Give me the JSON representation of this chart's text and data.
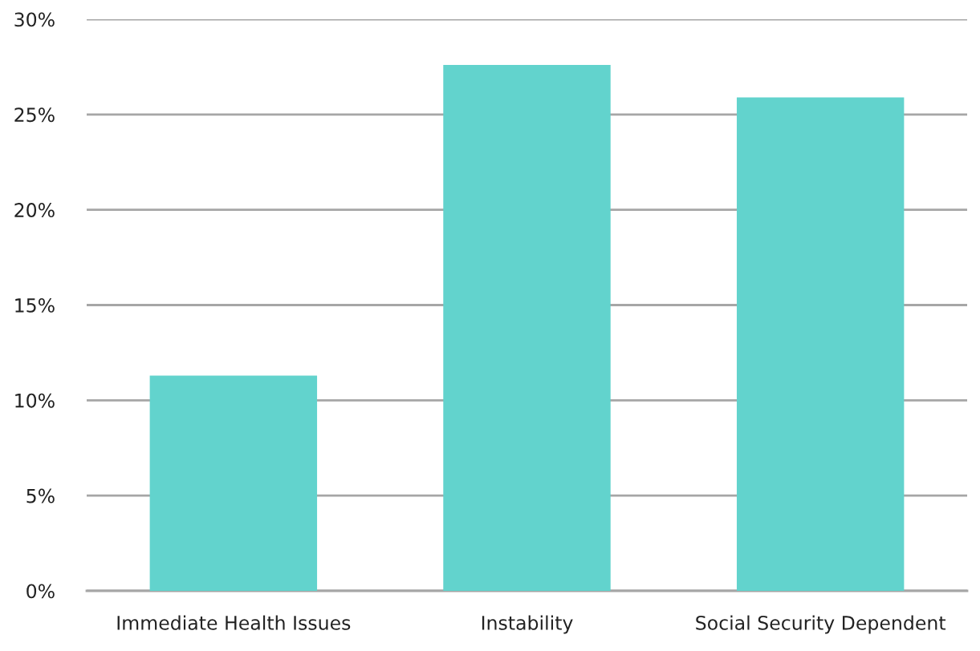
{
  "chart_data": {
    "type": "bar",
    "categories": [
      "Immediate Health Issues",
      "Instability",
      "Social Security Dependent"
    ],
    "values": [
      11.3,
      27.6,
      25.9
    ],
    "color": "#62d3cd",
    "ylim": [
      0,
      30
    ],
    "yticks": [
      {
        "value": 0,
        "label": "0%"
      },
      {
        "value": 5,
        "label": "5%"
      },
      {
        "value": 10,
        "label": "10%"
      },
      {
        "value": 15,
        "label": "15%"
      },
      {
        "value": 20,
        "label": "20%"
      },
      {
        "value": 25,
        "label": "25%"
      },
      {
        "value": 30,
        "label": "30%"
      }
    ],
    "grid": "y",
    "legend": false
  }
}
